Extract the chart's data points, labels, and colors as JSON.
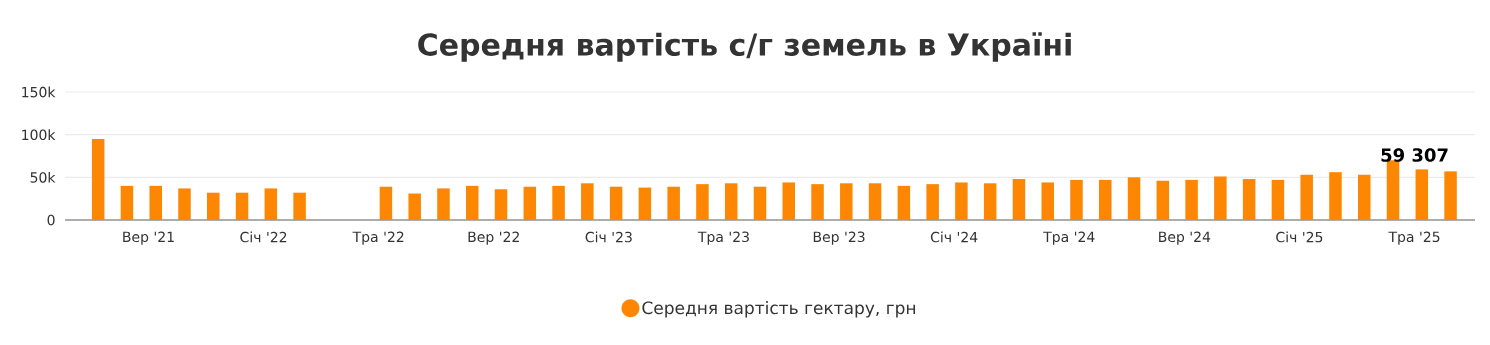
{
  "chart_data": {
    "type": "bar",
    "title": "Середня вартість с/г земель в Україні",
    "categories": [
      null,
      null,
      "Вер '21",
      null,
      null,
      null,
      "Січ '22",
      null,
      null,
      null,
      "Тра '22",
      null,
      null,
      null,
      "Вер '22",
      null,
      null,
      null,
      "Січ '23",
      null,
      null,
      null,
      "Тра '23",
      null,
      null,
      null,
      "Вер '23",
      null,
      null,
      null,
      "Січ '24",
      null,
      null,
      null,
      "Тра '24",
      null,
      null,
      null,
      "Вер '24",
      null,
      null,
      null,
      "Січ '25",
      null,
      null,
      null,
      "Тра '25",
      null
    ],
    "series": [
      {
        "name": "Середня вартість гектару, грн",
        "color": "#fd8603",
        "values": [
          95000,
          40000,
          40000,
          37000,
          32000,
          32000,
          37000,
          32000,
          null,
          null,
          39000,
          31000,
          37000,
          40000,
          36000,
          39000,
          40000,
          43000,
          39000,
          38000,
          39000,
          42000,
          43000,
          39000,
          44000,
          42000,
          43000,
          43000,
          40000,
          42000,
          44000,
          43000,
          48000,
          44000,
          47000,
          47000,
          50000,
          46000,
          47000,
          51000,
          48000,
          47000,
          53000,
          56000,
          53000,
          70000,
          59307,
          57000
        ],
        "value_labels": [
          null,
          null,
          null,
          null,
          null,
          null,
          null,
          null,
          null,
          null,
          null,
          null,
          null,
          null,
          null,
          null,
          null,
          null,
          null,
          null,
          null,
          null,
          null,
          null,
          null,
          null,
          null,
          null,
          null,
          null,
          null,
          null,
          null,
          null,
          null,
          null,
          null,
          null,
          null,
          null,
          null,
          null,
          null,
          null,
          null,
          null,
          "59 307",
          null
        ]
      }
    ],
    "ylim": [
      0,
      150000
    ],
    "yticks": [
      {
        "value": 0,
        "label": "0"
      },
      {
        "value": 50000,
        "label": "50k"
      },
      {
        "value": 100000,
        "label": "100k"
      },
      {
        "value": 150000,
        "label": "150k"
      }
    ],
    "grid": "y",
    "legend": "bottom"
  }
}
